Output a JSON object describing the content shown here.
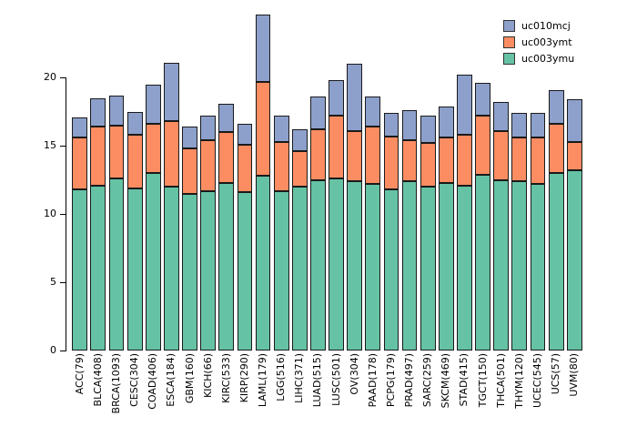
{
  "chart_data": {
    "type": "bar",
    "stacked": true,
    "title": "",
    "xlabel": "",
    "ylabel": "",
    "grid": false,
    "yticks": [
      0,
      5,
      10,
      15,
      20
    ],
    "ylim": [
      0,
      25
    ],
    "categories": [
      "ACC(79)",
      "BLCA(408)",
      "BRCA(1093)",
      "CESC(304)",
      "COAD(406)",
      "ESCA(184)",
      "GBM(160)",
      "KICH(66)",
      "KIRC(533)",
      "KIRP(290)",
      "LAML(179)",
      "LGG(516)",
      "LIHC(371)",
      "LUAD(515)",
      "LUSC(501)",
      "OV(304)",
      "PAAD(178)",
      "PCPG(179)",
      "PRAD(497)",
      "SARC(259)",
      "SKCM(469)",
      "STAD(415)",
      "TGCT(150)",
      "THCA(501)",
      "THYM(120)",
      "UCEC(545)",
      "UCS(57)",
      "UVM(80)"
    ],
    "series": [
      {
        "name": "uc003ymu",
        "color": "#66C2A5",
        "values": [
          11.8,
          12.1,
          12.6,
          11.9,
          13.0,
          12.0,
          11.5,
          11.7,
          12.3,
          11.6,
          12.8,
          11.7,
          12.0,
          12.5,
          12.6,
          12.4,
          12.2,
          11.8,
          12.4,
          12.0,
          12.3,
          12.1,
          12.9,
          12.5,
          12.4,
          12.2,
          13.0,
          13.2
        ]
      },
      {
        "name": "uc003ymt",
        "color": "#FC8D62",
        "values": [
          3.8,
          4.3,
          3.9,
          3.9,
          3.6,
          4.8,
          3.3,
          3.7,
          3.7,
          3.5,
          6.9,
          3.6,
          2.6,
          3.7,
          4.6,
          3.7,
          4.2,
          3.9,
          3.0,
          3.2,
          3.3,
          3.7,
          4.3,
          3.6,
          3.2,
          3.4,
          3.6,
          2.1
        ]
      },
      {
        "name": "uc010mcj",
        "color": "#8DA0CB",
        "values": [
          1.5,
          2.1,
          2.2,
          1.7,
          2.9,
          4.3,
          1.6,
          1.8,
          2.1,
          1.5,
          4.9,
          1.9,
          1.6,
          2.4,
          2.6,
          4.9,
          2.2,
          1.7,
          2.2,
          2.0,
          2.3,
          4.4,
          2.4,
          2.1,
          1.8,
          1.8,
          2.5,
          3.1
        ]
      }
    ],
    "legend": {
      "position": "top-right",
      "entries": [
        "uc010mcj",
        "uc003ymt",
        "uc003ymu"
      ]
    }
  }
}
